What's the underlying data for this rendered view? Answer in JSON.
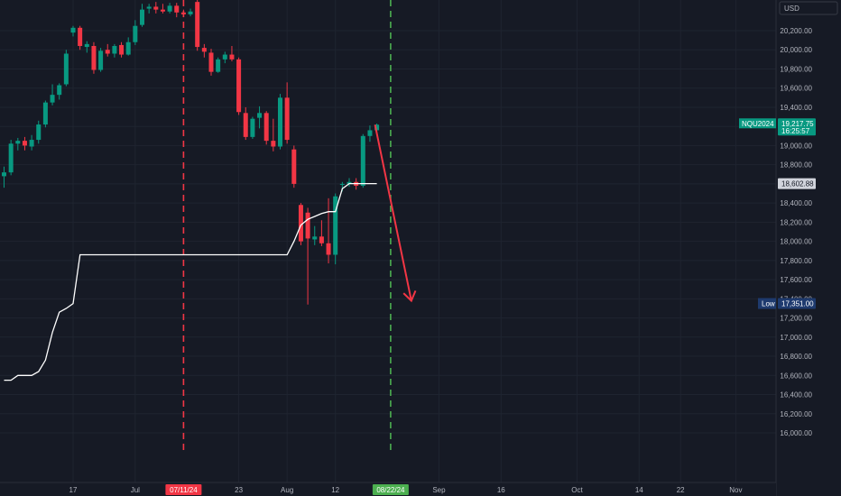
{
  "currency_button": "USD",
  "chart_data": {
    "type": "candlestick",
    "y_axis": {
      "min": 15900,
      "max": 20450,
      "ticks": [
        "20,200.00",
        "20,000.00",
        "19,800.00",
        "19,600.00",
        "19,400.00",
        "19,200.00",
        "19,000.00",
        "18,800.00",
        "18,600.00",
        "18,400.00",
        "18,200.00",
        "18,000.00",
        "17,800.00",
        "17,600.00",
        "17,400.00",
        "17,200.00",
        "17,000.00",
        "16,800.00",
        "16,600.00",
        "16,400.00",
        "16,200.00",
        "16,000.00"
      ]
    },
    "x_axis": {
      "ticks": [
        {
          "label": "17",
          "slot": 10
        },
        {
          "label": "Jul",
          "slot": 19
        },
        {
          "label": "23",
          "slot": 34
        },
        {
          "label": "Aug",
          "slot": 41
        },
        {
          "label": "12",
          "slot": 48
        },
        {
          "label": "Sep",
          "slot": 63
        },
        {
          "label": "16",
          "slot": 72
        },
        {
          "label": "Oct",
          "slot": 83
        },
        {
          "label": "14",
          "slot": 92
        },
        {
          "label": "22",
          "slot": 98
        },
        {
          "label": "Nov",
          "slot": 106
        }
      ],
      "highlight_labels": [
        {
          "label": "07/11/24",
          "slot": 26,
          "color": "#f23645"
        },
        {
          "label": "08/22/24",
          "slot": 56,
          "color": "#4caf50"
        }
      ]
    },
    "vlines": [
      {
        "slot": 26,
        "color": "#f23645"
      },
      {
        "slot": 56,
        "color": "#4caf50"
      }
    ],
    "candles": [
      {
        "o": 18680,
        "h": 18780,
        "l": 18560,
        "c": 18720
      },
      {
        "o": 18720,
        "h": 19060,
        "l": 18690,
        "c": 19020
      },
      {
        "o": 19020,
        "h": 19080,
        "l": 18950,
        "c": 19050
      },
      {
        "o": 19050,
        "h": 19090,
        "l": 18950,
        "c": 19000
      },
      {
        "o": 18990,
        "h": 19110,
        "l": 18950,
        "c": 19060
      },
      {
        "o": 19060,
        "h": 19260,
        "l": 19020,
        "c": 19220
      },
      {
        "o": 19220,
        "h": 19470,
        "l": 19190,
        "c": 19450
      },
      {
        "o": 19450,
        "h": 19640,
        "l": 19420,
        "c": 19530
      },
      {
        "o": 19530,
        "h": 19650,
        "l": 19480,
        "c": 19630
      },
      {
        "o": 19640,
        "h": 20000,
        "l": 19620,
        "c": 19960
      },
      {
        "o": 20180,
        "h": 20250,
        "l": 20140,
        "c": 20230
      },
      {
        "o": 20230,
        "h": 20250,
        "l": 20000,
        "c": 20040
      },
      {
        "o": 20030,
        "h": 20090,
        "l": 19970,
        "c": 20060
      },
      {
        "o": 20040,
        "h": 20080,
        "l": 19750,
        "c": 19790
      },
      {
        "o": 19790,
        "h": 20020,
        "l": 19770,
        "c": 19990
      },
      {
        "o": 20000,
        "h": 20060,
        "l": 19930,
        "c": 19960
      },
      {
        "o": 19960,
        "h": 20060,
        "l": 19920,
        "c": 20040
      },
      {
        "o": 20050,
        "h": 20080,
        "l": 19920,
        "c": 19950
      },
      {
        "o": 19950,
        "h": 20130,
        "l": 19940,
        "c": 20080
      },
      {
        "o": 20080,
        "h": 20310,
        "l": 20050,
        "c": 20250
      },
      {
        "o": 20260,
        "h": 20480,
        "l": 20240,
        "c": 20420
      },
      {
        "o": 20430,
        "h": 20480,
        "l": 20380,
        "c": 20450
      },
      {
        "o": 20450,
        "h": 20500,
        "l": 20380,
        "c": 20420
      },
      {
        "o": 20420,
        "h": 20480,
        "l": 20380,
        "c": 20400
      },
      {
        "o": 20400,
        "h": 20490,
        "l": 20380,
        "c": 20460
      },
      {
        "o": 20460,
        "h": 20490,
        "l": 20340,
        "c": 20390
      },
      {
        "o": 20390,
        "h": 20420,
        "l": 20340,
        "c": 20370
      },
      {
        "o": 20370,
        "h": 20430,
        "l": 20350,
        "c": 20400
      },
      {
        "o": 20500,
        "h": 20520,
        "l": 19990,
        "c": 20030
      },
      {
        "o": 20020,
        "h": 20060,
        "l": 19920,
        "c": 19980
      },
      {
        "o": 19970,
        "h": 20010,
        "l": 19730,
        "c": 19770
      },
      {
        "o": 19770,
        "h": 19920,
        "l": 19760,
        "c": 19900
      },
      {
        "o": 19900,
        "h": 19980,
        "l": 19860,
        "c": 19950
      },
      {
        "o": 19950,
        "h": 20040,
        "l": 19880,
        "c": 19900
      },
      {
        "o": 19900,
        "h": 19920,
        "l": 19320,
        "c": 19350
      },
      {
        "o": 19340,
        "h": 19400,
        "l": 19060,
        "c": 19090
      },
      {
        "o": 19090,
        "h": 19300,
        "l": 19070,
        "c": 19280
      },
      {
        "o": 19290,
        "h": 19410,
        "l": 19180,
        "c": 19340
      },
      {
        "o": 19340,
        "h": 19360,
        "l": 19010,
        "c": 19050
      },
      {
        "o": 19050,
        "h": 19280,
        "l": 18940,
        "c": 18990
      },
      {
        "o": 18990,
        "h": 19540,
        "l": 18960,
        "c": 19500
      },
      {
        "o": 19500,
        "h": 19660,
        "l": 19020,
        "c": 19060
      },
      {
        "o": 18960,
        "h": 19000,
        "l": 18560,
        "c": 18600
      },
      {
        "o": 18380,
        "h": 18400,
        "l": 17960,
        "c": 18000
      },
      {
        "o": 18300,
        "h": 18350,
        "l": 17340,
        "c": 18030
      },
      {
        "o": 18020,
        "h": 18160,
        "l": 17960,
        "c": 18050
      },
      {
        "o": 18050,
        "h": 18220,
        "l": 17950,
        "c": 17980
      },
      {
        "o": 17980,
        "h": 18450,
        "l": 17770,
        "c": 17860
      },
      {
        "o": 17860,
        "h": 18500,
        "l": 17760,
        "c": 18470
      },
      {
        "o": 18590,
        "h": 18620,
        "l": 18520,
        "c": 18600
      },
      {
        "o": 18600,
        "h": 18660,
        "l": 18570,
        "c": 18620
      },
      {
        "o": 18620,
        "h": 18660,
        "l": 18540,
        "c": 18580
      },
      {
        "o": 18580,
        "h": 19120,
        "l": 18560,
        "c": 19100
      },
      {
        "o": 19100,
        "h": 19210,
        "l": 19040,
        "c": 19160
      },
      {
        "o": 19160,
        "h": 19230,
        "l": 19120,
        "c": 19218
      }
    ],
    "line": {
      "color": "#ffffff",
      "values": [
        16550,
        16550,
        16600,
        16600,
        16600,
        16640,
        16760,
        17050,
        17260,
        17300,
        17350,
        17860,
        17860,
        17860,
        17860,
        17860,
        17860,
        17860,
        17860,
        17860,
        17860,
        17860,
        17860,
        17860,
        17860,
        17860,
        17860,
        17860,
        17860,
        17860,
        17860,
        17860,
        17860,
        17860,
        17860,
        17860,
        17860,
        17860,
        17860,
        17860,
        17860,
        17860,
        18000,
        18170,
        18230,
        18260,
        18290,
        18310,
        18310,
        18550,
        18603,
        18603,
        18603,
        18603,
        18603
      ]
    },
    "forecast_arrow": {
      "from_slot": 54,
      "from_value": 19218,
      "to_slot": 59,
      "to_value": 17380,
      "color": "#f23645"
    },
    "price_tags": [
      {
        "symbol": "NQU2024",
        "value": "19,217.75",
        "timer": "16:25:57",
        "color": "#089981",
        "y": 19218
      },
      {
        "value": "18,602.88",
        "color": "#d1d4dc",
        "y": 18603
      },
      {
        "label": "Low",
        "value": "17,351.00",
        "color": "#1e3a6e",
        "y": 17351
      }
    ]
  }
}
